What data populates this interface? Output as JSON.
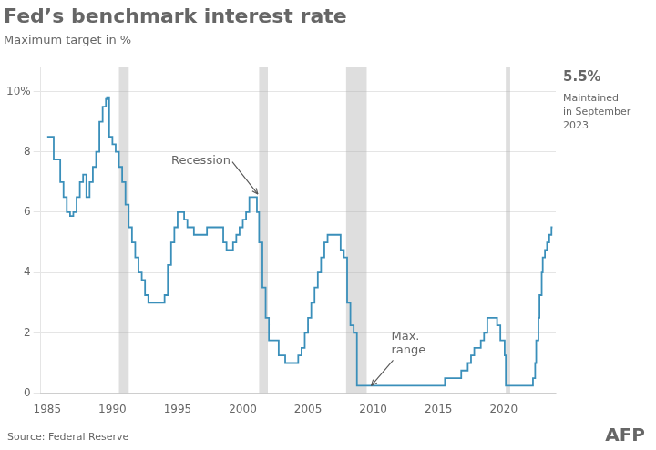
{
  "chart_data": {
    "type": "line",
    "line_style": "step",
    "title": "Fed’s benchmark interest rate",
    "subtitle": "Maximum target in %",
    "source": "Source: Federal Reserve",
    "logo": "AFP",
    "color": "#3a8fba",
    "grid": "y",
    "legend": false,
    "xlim": [
      1984.5,
      2024.0
    ],
    "xticks": [
      1985,
      1990,
      1995,
      2000,
      2005,
      2010,
      2015,
      2020
    ],
    "ylim": [
      0,
      10.8
    ],
    "yticks": [
      0,
      2,
      4,
      6,
      8,
      {
        "value": 10,
        "label": "10%"
      }
    ],
    "recessions": [
      [
        1990.5,
        1991.25
      ],
      [
        2001.25,
        2001.92
      ],
      [
        2007.92,
        2009.5
      ],
      [
        2020.17,
        2020.5
      ]
    ],
    "annotations": [
      {
        "text": "Recession",
        "x": 2001.15,
        "y": 6.6
      },
      {
        "text": "Max.\nrange",
        "x": 2009.85,
        "y": 0.25
      },
      {
        "text": "5.5%"
      },
      {
        "text": "Maintained\nin September\n2023"
      }
    ],
    "x": [
      1985.0,
      1985.5,
      1986.0,
      1986.25,
      1986.5,
      1986.75,
      1987.0,
      1987.25,
      1987.5,
      1987.75,
      1988.0,
      1988.25,
      1988.5,
      1988.75,
      1989.0,
      1989.25,
      1989.5,
      1989.583,
      1989.75,
      1990.0,
      1990.25,
      1990.5,
      1990.75,
      1991.0,
      1991.25,
      1991.5,
      1991.75,
      1992.0,
      1992.25,
      1992.5,
      1992.75,
      1993.0,
      1993.25,
      1993.5,
      1993.75,
      1994.0,
      1994.25,
      1994.5,
      1994.75,
      1995.0,
      1995.25,
      1995.5,
      1995.75,
      1996.0,
      1996.25,
      1996.5,
      1996.75,
      1997.0,
      1997.25,
      1997.5,
      1997.75,
      1998.0,
      1998.25,
      1998.5,
      1998.75,
      1999.0,
      1999.25,
      1999.5,
      1999.75,
      2000.0,
      2000.25,
      2000.5,
      2000.75,
      2001.0,
      2001.08,
      2001.25,
      2001.5,
      2001.75,
      2002.0,
      2002.25,
      2002.5,
      2002.75,
      2003.0,
      2003.25,
      2003.5,
      2003.75,
      2004.0,
      2004.25,
      2004.5,
      2004.75,
      2005.0,
      2005.25,
      2005.5,
      2005.75,
      2006.0,
      2006.25,
      2006.5,
      2006.75,
      2007.0,
      2007.25,
      2007.5,
      2007.75,
      2008.0,
      2008.25,
      2008.5,
      2008.75,
      2009.0,
      2009.25,
      2009.5,
      2009.75,
      2010.0,
      2010.25,
      2010.5,
      2010.75,
      2011.0,
      2011.25,
      2011.5,
      2011.75,
      2012.0,
      2012.25,
      2012.5,
      2012.75,
      2013.0,
      2013.25,
      2013.5,
      2013.75,
      2014.0,
      2014.25,
      2014.5,
      2014.75,
      2015.0,
      2015.25,
      2015.5,
      2015.75,
      2016.0,
      2016.25,
      2016.5,
      2016.75,
      2017.0,
      2017.25,
      2017.5,
      2017.75,
      2018.0,
      2018.25,
      2018.5,
      2018.75,
      2019.0,
      2019.25,
      2019.5,
      2019.75,
      2020.0,
      2020.08,
      2020.17,
      2020.25,
      2020.5,
      2020.75,
      2021.0,
      2021.25,
      2021.5,
      2021.75,
      2022.0,
      2022.25,
      2022.42,
      2022.5,
      2022.67,
      2022.75,
      2022.92,
      2023.0,
      2023.17,
      2023.33,
      2023.5,
      2023.67,
      2023.75
    ],
    "values": [
      8.5,
      7.75,
      7.0,
      6.5,
      6.0,
      5.875,
      6.0,
      6.5,
      7.0,
      7.25,
      6.5,
      7.0,
      7.5,
      8.0,
      9.0,
      9.5,
      9.75,
      9.8125,
      8.5,
      8.25,
      8.0,
      7.5,
      7.0,
      6.25,
      5.5,
      5.0,
      4.5,
      4.0,
      3.75,
      3.25,
      3.0,
      3.0,
      3.0,
      3.0,
      3.0,
      3.25,
      4.25,
      5.0,
      5.5,
      6.0,
      6.0,
      5.75,
      5.5,
      5.5,
      5.25,
      5.25,
      5.25,
      5.25,
      5.5,
      5.5,
      5.5,
      5.5,
      5.5,
      5.0,
      4.75,
      4.75,
      5.0,
      5.25,
      5.5,
      5.75,
      6.0,
      6.5,
      6.5,
      6.5,
      6.0,
      5.0,
      3.5,
      2.5,
      1.75,
      1.75,
      1.75,
      1.25,
      1.25,
      1.0,
      1.0,
      1.0,
      1.0,
      1.25,
      1.5,
      2.0,
      2.5,
      3.0,
      3.5,
      4.0,
      4.5,
      5.0,
      5.25,
      5.25,
      5.25,
      5.25,
      4.75,
      4.5,
      3.0,
      2.25,
      2.0,
      0.25,
      0.25,
      0.25,
      0.25,
      0.25,
      0.25,
      0.25,
      0.25,
      0.25,
      0.25,
      0.25,
      0.25,
      0.25,
      0.25,
      0.25,
      0.25,
      0.25,
      0.25,
      0.25,
      0.25,
      0.25,
      0.25,
      0.25,
      0.25,
      0.25,
      0.25,
      0.25,
      0.5,
      0.5,
      0.5,
      0.5,
      0.5,
      0.75,
      0.75,
      1.0,
      1.25,
      1.5,
      1.5,
      1.75,
      2.0,
      2.5,
      2.5,
      2.5,
      2.25,
      1.75,
      1.75,
      1.25,
      0.25,
      0.25,
      0.25,
      0.25,
      0.25,
      0.25,
      0.25,
      0.25,
      0.25,
      0.5,
      1.0,
      1.75,
      2.5,
      3.25,
      4.0,
      4.5,
      4.75,
      5.0,
      5.25,
      5.5,
      5.5
    ]
  }
}
